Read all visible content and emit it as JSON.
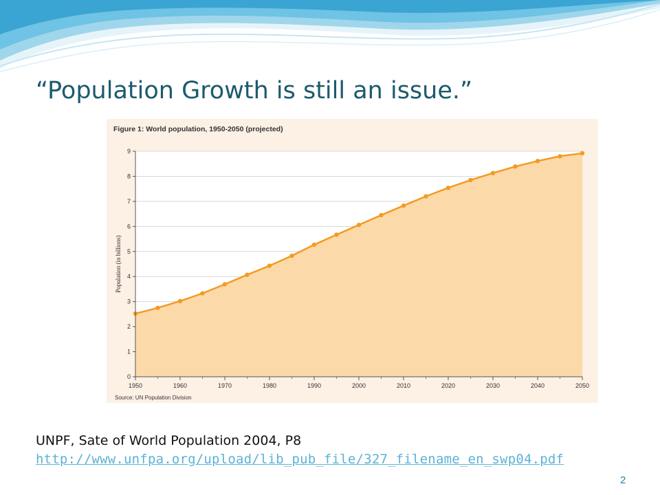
{
  "slide": {
    "title": "“Population Growth is still an issue.”",
    "citation": "UNPF, Sate of World Population 2004, P8",
    "link": "http://www.unfpa.org/upload/lib_pub_file/327_filename_en_swp04.pdf",
    "page_number": "2"
  },
  "colors": {
    "title": "#1c5a6e",
    "link": "#5cb2d6",
    "series_line": "#f29b23",
    "series_fill": "#fcd9a8",
    "figure_bg": "#fdf0e5",
    "wave": "#6fc3e4"
  },
  "chart_data": {
    "type": "area",
    "title": "Figure 1: World population, 1950-2050 (projected)",
    "ylabel": "Population (in billions)",
    "xlabel": "",
    "source": "Source: UN Population Division",
    "x": [
      1950,
      1955,
      1960,
      1965,
      1970,
      1975,
      1980,
      1985,
      1990,
      1995,
      2000,
      2005,
      2010,
      2015,
      2020,
      2025,
      2030,
      2035,
      2040,
      2045,
      2050
    ],
    "series": [
      {
        "values": [
          2.52,
          2.75,
          3.02,
          3.33,
          3.69,
          4.07,
          4.43,
          4.83,
          5.27,
          5.67,
          6.06,
          6.45,
          6.83,
          7.2,
          7.54,
          7.85,
          8.13,
          8.39,
          8.61,
          8.8,
          8.92
        ]
      }
    ],
    "xlim": [
      1950,
      2050
    ],
    "ylim": [
      0,
      9
    ],
    "xticks": [
      "1950",
      "1960",
      "1970",
      "1980",
      "1990",
      "2000",
      "2010",
      "2020",
      "2030",
      "2040",
      "2050"
    ],
    "yticks": [
      "0",
      "1",
      "2",
      "3",
      "4",
      "5",
      "6",
      "7",
      "8",
      "9"
    ],
    "grid": true,
    "legend": "none"
  }
}
